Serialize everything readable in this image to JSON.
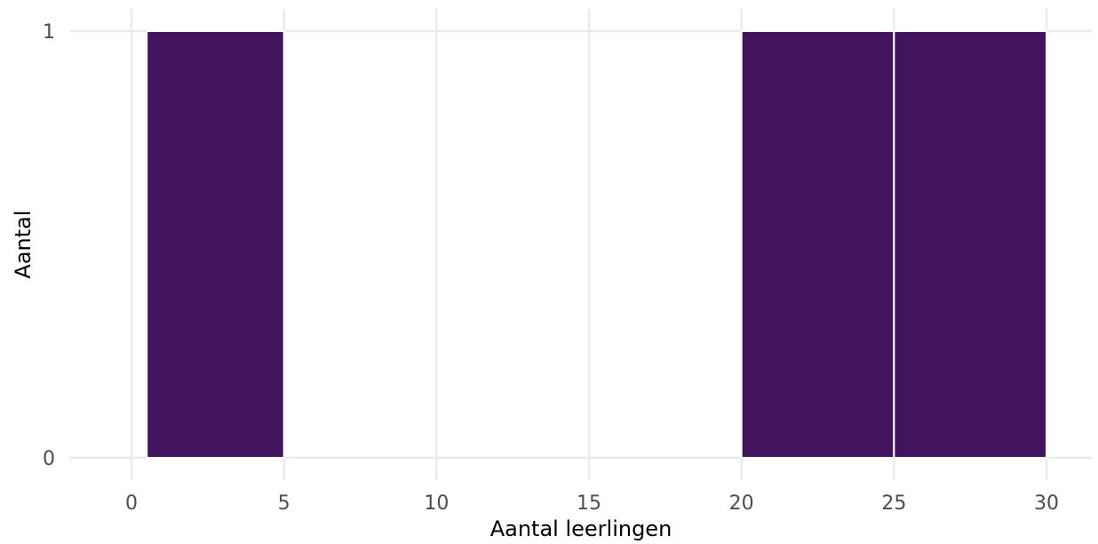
{
  "chart_data": {
    "type": "bar",
    "subtype": "histogram",
    "bins": [
      {
        "start": 0.5,
        "end": 5,
        "count": 1
      },
      {
        "start": 20,
        "end": 25,
        "count": 1
      },
      {
        "start": 25,
        "end": 30,
        "count": 1
      }
    ],
    "xlabel": "Aantal leerlingen",
    "ylabel": "Aantal",
    "x_ticks": [
      0,
      5,
      10,
      15,
      20,
      25,
      30
    ],
    "y_ticks": [
      0,
      1
    ],
    "xlim": [
      -2,
      31.5
    ],
    "ylim": [
      0,
      1
    ],
    "grid": true,
    "legend": "none",
    "colors": {
      "bar": "#43145E",
      "bar_border": "#ffffff",
      "grid": "#ebebeb"
    }
  }
}
